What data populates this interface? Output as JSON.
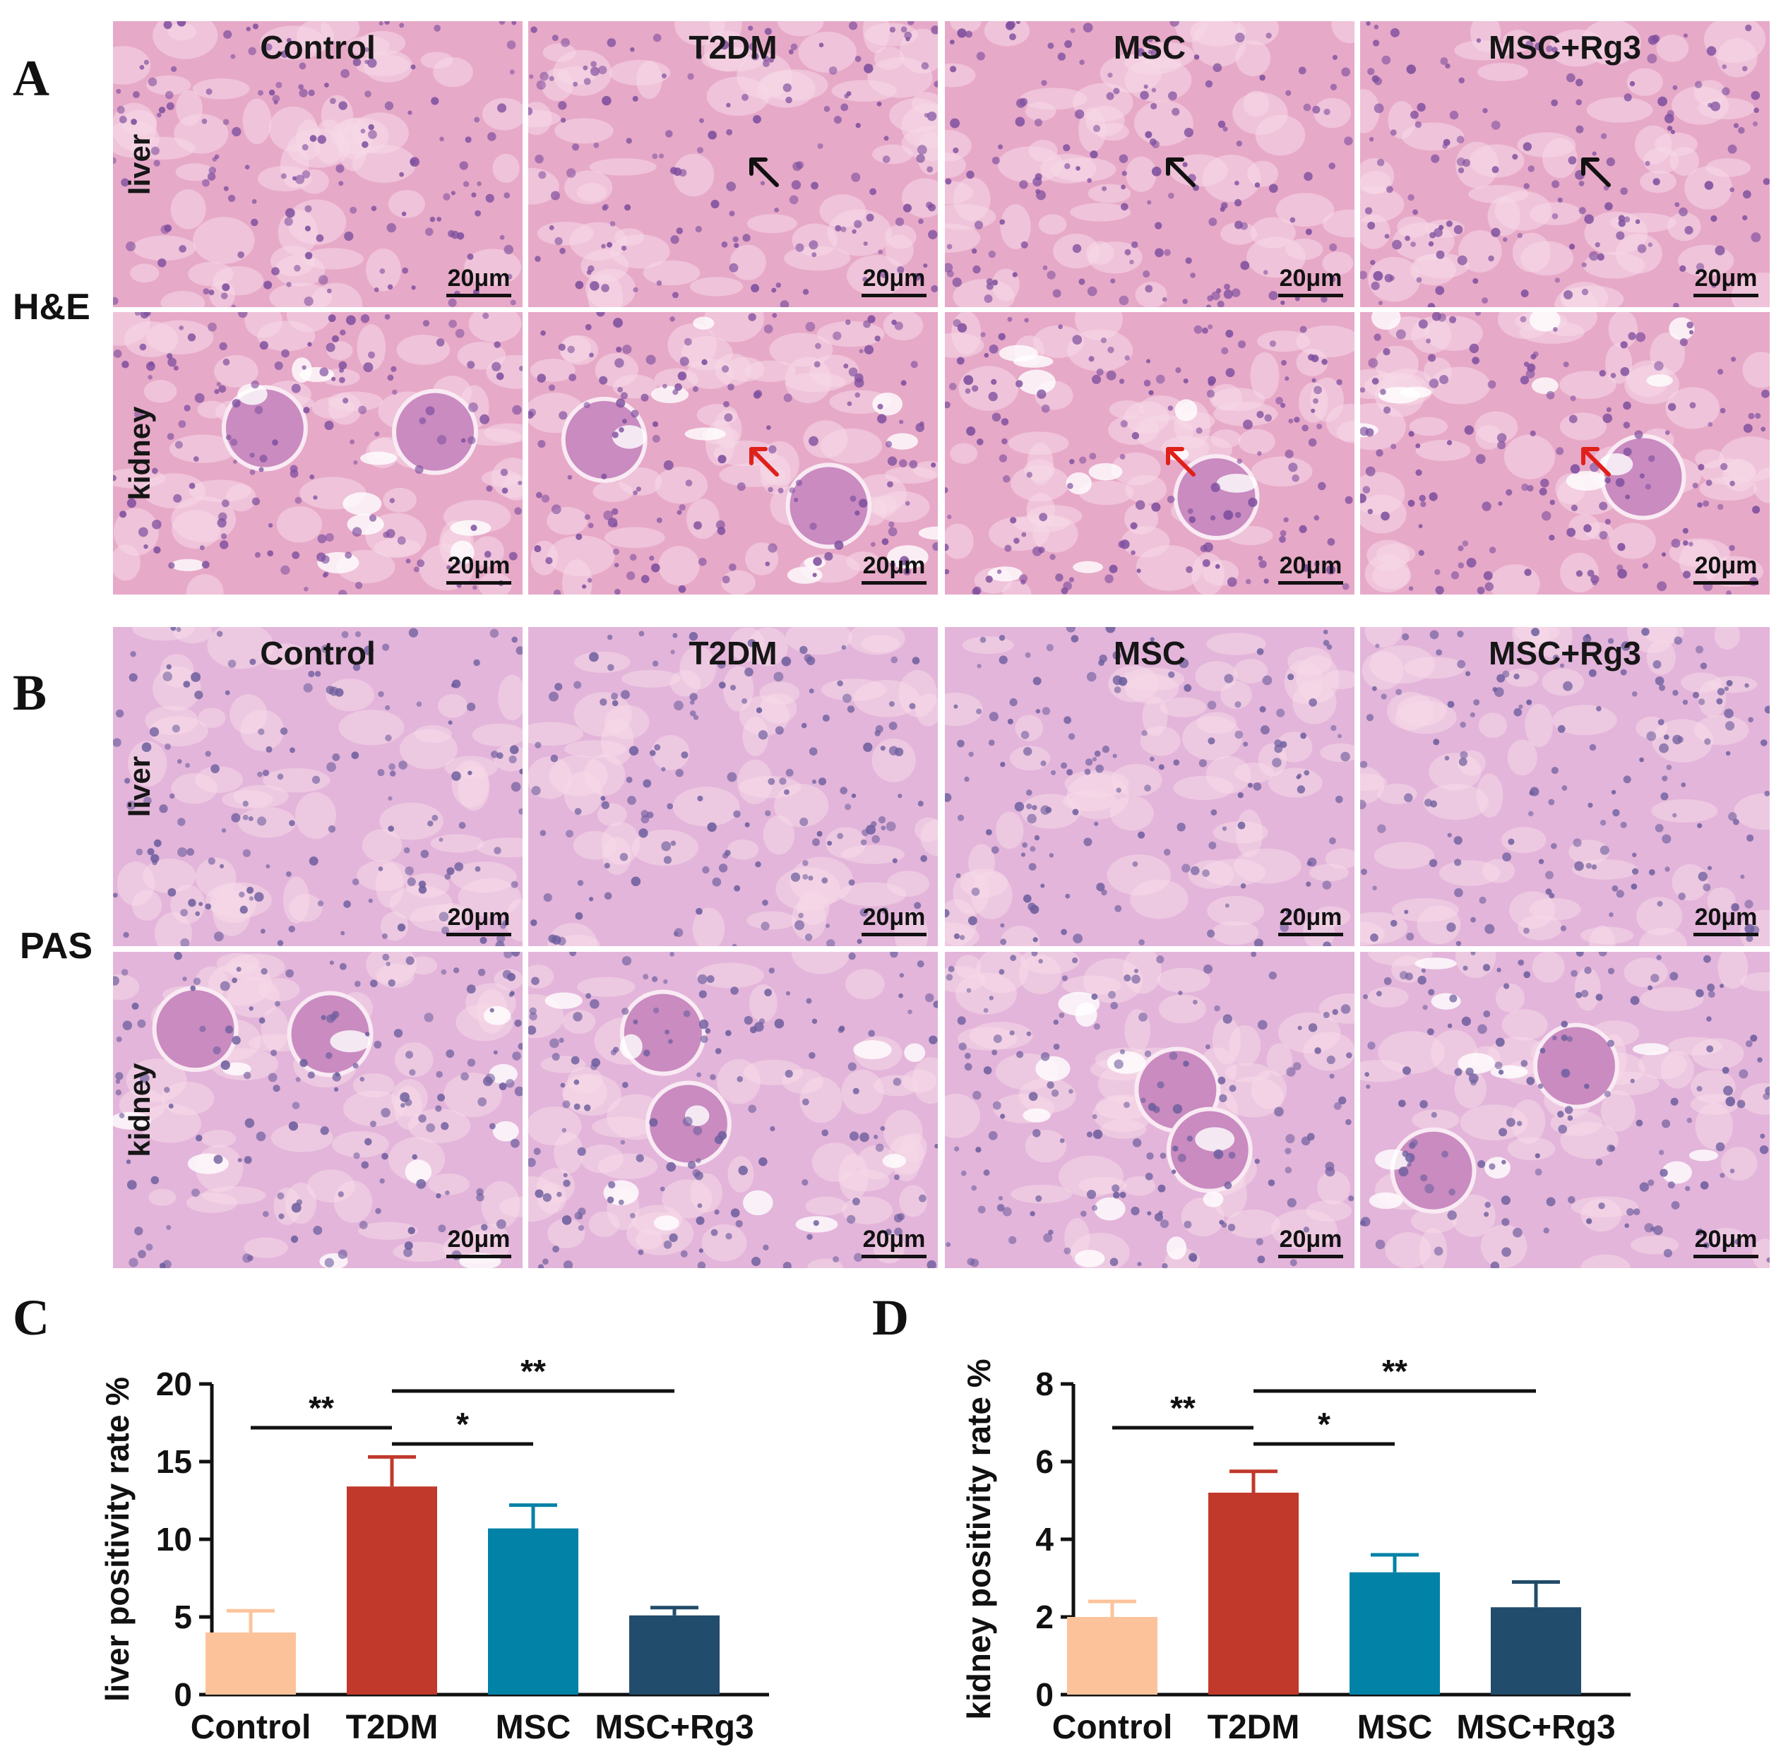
{
  "panels": {
    "A": {
      "letter": "A",
      "stain": "H&E"
    },
    "B": {
      "letter": "B",
      "stain": "PAS"
    },
    "C": {
      "letter": "C"
    },
    "D": {
      "letter": "D"
    }
  },
  "groups": [
    "Control",
    "T2DM",
    "MSC",
    "MSC+Rg3"
  ],
  "organs": [
    "liver",
    "kidney"
  ],
  "scale_bar_label": "20μm",
  "colors": {
    "control": "#FCC39B",
    "t2dm": "#C0392B",
    "msc": "#0382A7",
    "msc_rg3": "#224C6B",
    "he_tissue": "#E7A9C8",
    "pas_tissue": "#E3B5DA",
    "arrow_black": "#111111",
    "arrow_red": "#E0201B"
  },
  "arrows": [
    {
      "panel": "A",
      "organ": "liver",
      "group": "T2DM",
      "color": "black"
    },
    {
      "panel": "A",
      "organ": "liver",
      "group": "MSC",
      "color": "black"
    },
    {
      "panel": "A",
      "organ": "liver",
      "group": "MSC+Rg3",
      "color": "black"
    },
    {
      "panel": "A",
      "organ": "kidney",
      "group": "T2DM",
      "color": "red"
    },
    {
      "panel": "A",
      "organ": "kidney",
      "group": "MSC",
      "color": "red"
    },
    {
      "panel": "A",
      "organ": "kidney",
      "group": "MSC+Rg3",
      "color": "red"
    }
  ],
  "chart_data": [
    {
      "panel": "C",
      "type": "bar",
      "categories": [
        "Control",
        "T2DM",
        "MSC",
        "MSC+Rg3"
      ],
      "values": [
        4.0,
        13.4,
        10.7,
        5.1
      ],
      "errors": [
        1.4,
        1.9,
        1.5,
        0.5
      ],
      "ylabel": "liver positivity rate %",
      "xlabel": "",
      "ylim": [
        0,
        20
      ],
      "yticks": [
        0,
        5,
        10,
        15,
        20
      ],
      "significance": [
        {
          "from": "Control",
          "to": "T2DM",
          "label": "**"
        },
        {
          "from": "T2DM",
          "to": "MSC",
          "label": "*"
        },
        {
          "from": "T2DM",
          "to": "MSC+Rg3",
          "label": "**"
        }
      ]
    },
    {
      "panel": "D",
      "type": "bar",
      "categories": [
        "Control",
        "T2DM",
        "MSC",
        "MSC+Rg3"
      ],
      "values": [
        2.0,
        5.2,
        3.15,
        2.25
      ],
      "errors": [
        0.4,
        0.55,
        0.45,
        0.65
      ],
      "ylabel": "kidney positivity rate %",
      "xlabel": "",
      "ylim": [
        0,
        8
      ],
      "yticks": [
        0,
        2,
        4,
        6,
        8
      ],
      "significance": [
        {
          "from": "Control",
          "to": "T2DM",
          "label": "**"
        },
        {
          "from": "T2DM",
          "to": "MSC",
          "label": "*"
        },
        {
          "from": "T2DM",
          "to": "MSC+Rg3",
          "label": "**"
        }
      ]
    }
  ]
}
